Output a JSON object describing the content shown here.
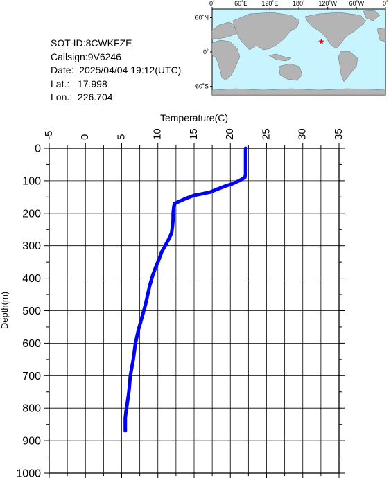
{
  "info": {
    "sot_id_label": "SOT-ID:",
    "sot_id": "8CWKFZE",
    "callsign_label": "Callsign:",
    "callsign": "9V6246",
    "date_label": "Date:",
    "date": "2025/04/04 19:12(UTC)",
    "lat_label": "Lat.:",
    "lat": "17.998",
    "lon_label": "Lon.:",
    "lon": "226.704"
  },
  "map": {
    "lon_ticks": [
      "0˚",
      "60˚E",
      "120˚E",
      "180˚",
      "120˚W",
      "60˚W",
      "0˚"
    ],
    "lat_ticks": [
      "60˚N",
      "0˚",
      "60˚S"
    ],
    "ocean_color": "#c8f4ff",
    "land_color": "#b4b4b4",
    "marker": "star",
    "marker_color": "#ff0000",
    "marker_lon": 226.704,
    "marker_lat": 17.998
  },
  "chart_data": {
    "type": "line",
    "xlabel": "Temperature(C)",
    "ylabel": "Depth(m)",
    "xlim": [
      -5,
      35
    ],
    "ylim": [
      1000,
      0
    ],
    "x_ticks": [
      "-5",
      "0",
      "5",
      "10",
      "15",
      "20",
      "25",
      "30",
      "35"
    ],
    "y_ticks": [
      "0",
      "100",
      "200",
      "300",
      "400",
      "500",
      "600",
      "700",
      "800",
      "900",
      "1000"
    ],
    "grid": true,
    "line_color": "#0000ff",
    "series": [
      {
        "x": [
          22.1,
          22.1,
          22.1,
          22.0,
          21.2,
          20.2,
          19.5,
          18.3,
          17.2,
          16.1,
          15.0,
          13.8,
          12.8,
          12.3,
          12.2,
          12.1,
          12.1,
          12.0,
          11.9,
          11.5,
          11.0,
          10.5,
          10.2,
          9.8,
          9.3,
          8.9,
          8.6,
          8.3,
          7.8,
          7.3,
          6.9,
          6.6,
          6.2,
          6.0,
          5.8,
          5.6,
          5.5,
          5.5
        ],
        "y": [
          0,
          50,
          80,
          90,
          100,
          110,
          115,
          125,
          135,
          140,
          145,
          155,
          165,
          170,
          180,
          200,
          220,
          240,
          260,
          280,
          300,
          320,
          340,
          360,
          390,
          420,
          450,
          480,
          520,
          560,
          600,
          650,
          700,
          750,
          780,
          810,
          830,
          870
        ]
      }
    ]
  }
}
